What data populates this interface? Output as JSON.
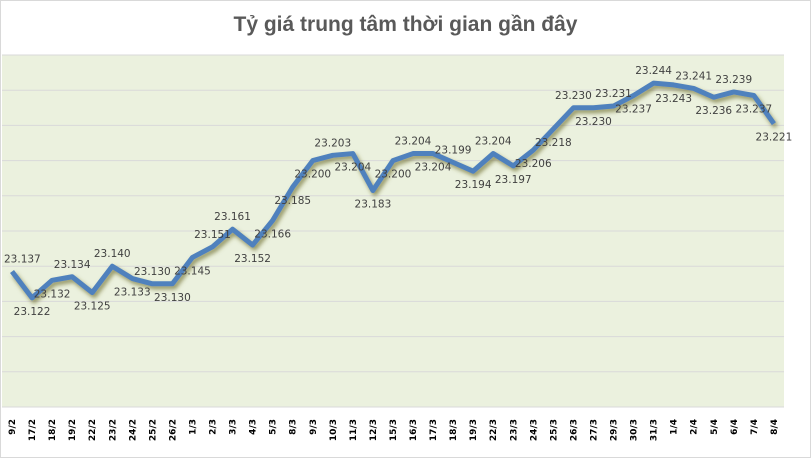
{
  "chart_data": {
    "type": "line",
    "title": "Tỷ giá trung tâm thời gian gần đây",
    "xlabel": "",
    "ylabel": "",
    "ylim": [
      23.06,
      23.26
    ],
    "grid": true,
    "legend": "none",
    "categories": [
      "9/2",
      "17/2",
      "18/2",
      "19/2",
      "22/2",
      "23/2",
      "24/2",
      "25/2",
      "26/2",
      "1/3",
      "2/3",
      "3/3",
      "4/3",
      "5/3",
      "8/3",
      "9/3",
      "10/3",
      "11/3",
      "12/3",
      "15/3",
      "16/3",
      "17/3",
      "18/3",
      "19/3",
      "22/3",
      "23/3",
      "24/3",
      "25/3",
      "26/3",
      "27/3",
      "29/3",
      "30/3",
      "31/3",
      "1/4",
      "2/4",
      "5/4",
      "6/4",
      "7/4",
      "8/4"
    ],
    "values": [
      23.137,
      23.122,
      23.132,
      23.134,
      23.125,
      23.14,
      23.133,
      23.13,
      23.13,
      23.145,
      23.151,
      23.161,
      23.152,
      23.166,
      23.185,
      23.2,
      23.203,
      23.204,
      23.183,
      23.2,
      23.204,
      23.204,
      23.199,
      23.194,
      23.204,
      23.197,
      23.206,
      23.218,
      23.23,
      23.23,
      23.231,
      23.237,
      23.244,
      23.243,
      23.241,
      23.236,
      23.239,
      23.237,
      23.221
    ],
    "colors": {
      "line": "#4f81bd",
      "plot_bg": "#ebf1de",
      "grid": "#d9d9d9"
    }
  }
}
